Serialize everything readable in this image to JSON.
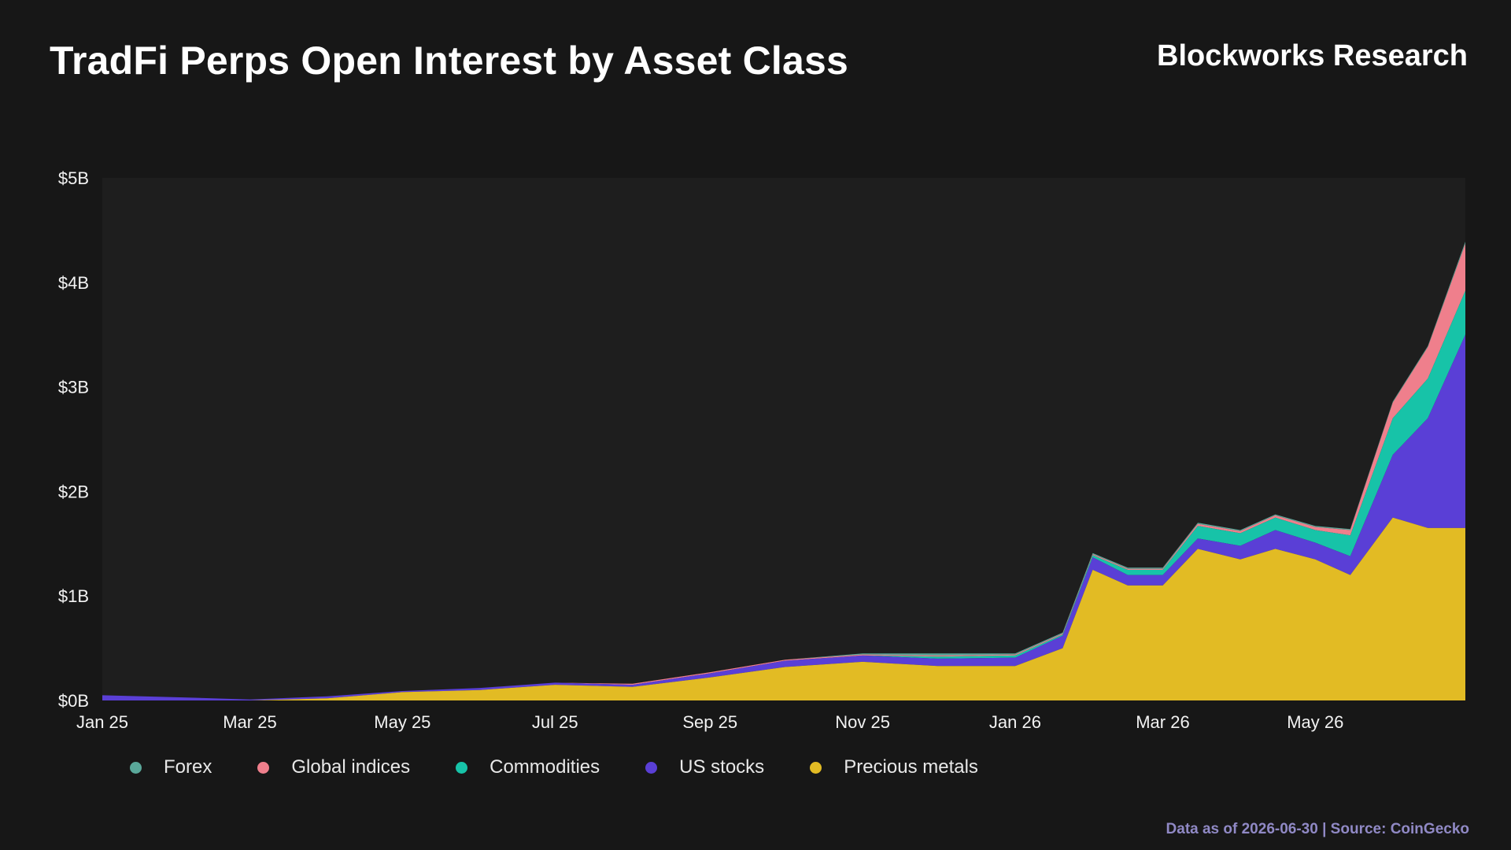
{
  "header": {
    "title": "TradFi Perps Open Interest by Asset Class",
    "brand": "Blockworks Research"
  },
  "footer": {
    "source_note": "Data as of 2026-06-30 | Source: CoinGecko"
  },
  "legend": [
    {
      "label": "Forex",
      "color": "#5aa89a"
    },
    {
      "label": "Global indices",
      "color": "#ef7f8c"
    },
    {
      "label": "Commodities",
      "color": "#17c3a8"
    },
    {
      "label": "US stocks",
      "color": "#5a3fd6"
    },
    {
      "label": "Precious metals",
      "color": "#e2bb24"
    }
  ],
  "chart_data": {
    "type": "area",
    "stacked": true,
    "title": "TradFi Perps Open Interest by Asset Class",
    "xlabel": "",
    "ylabel": "",
    "x_tick_labels": [
      "Jan 25",
      "Mar 25",
      "May 25",
      "Jul 25",
      "Sep 25",
      "Nov 25",
      "Jan 26",
      "Mar 26",
      "May 26"
    ],
    "y_tick_labels": [
      "$0B",
      "$1B",
      "$2B",
      "$3B",
      "$4B",
      "$5B"
    ],
    "ylim": [
      0,
      5
    ],
    "y_unit": "billion USD",
    "xlim": [
      "2025-01-01",
      "2026-06-30"
    ],
    "grid": false,
    "legend_position": "bottom",
    "x": [
      "2025-01-01",
      "2025-02-01",
      "2025-03-01",
      "2025-04-01",
      "2025-05-01",
      "2025-06-01",
      "2025-07-01",
      "2025-08-01",
      "2025-09-01",
      "2025-10-01",
      "2025-11-01",
      "2025-12-01",
      "2026-01-01",
      "2026-01-20",
      "2026-02-01",
      "2026-02-15",
      "2026-03-01",
      "2026-03-15",
      "2026-04-01",
      "2026-04-15",
      "2026-05-01",
      "2026-05-15",
      "2026-06-01",
      "2026-06-15",
      "2026-06-30"
    ],
    "series": [
      {
        "name": "Precious metals",
        "color": "#e2bb24",
        "values": [
          0,
          0,
          0,
          0.02,
          0.08,
          0.1,
          0.15,
          0.13,
          0.22,
          0.32,
          0.37,
          0.33,
          0.33,
          0.5,
          1.25,
          1.1,
          1.1,
          1.45,
          1.35,
          1.45,
          1.35,
          1.2,
          1.75,
          1.65,
          1.65
        ]
      },
      {
        "name": "US stocks",
        "color": "#5a3fd6",
        "values": [
          0.05,
          0.03,
          0.01,
          0.02,
          0.01,
          0.02,
          0.02,
          0.02,
          0.04,
          0.06,
          0.06,
          0.07,
          0.08,
          0.12,
          0.12,
          0.1,
          0.1,
          0.1,
          0.13,
          0.18,
          0.16,
          0.18,
          0.6,
          1.05,
          1.85
        ]
      },
      {
        "name": "Commodities",
        "color": "#17c3a8",
        "values": [
          0,
          0,
          0,
          0,
          0,
          0,
          0,
          0,
          0,
          0,
          0,
          0.02,
          0.02,
          0.01,
          0.02,
          0.05,
          0.05,
          0.12,
          0.12,
          0.12,
          0.12,
          0.2,
          0.35,
          0.38,
          0.42
        ]
      },
      {
        "name": "Global indices",
        "color": "#ef7f8c",
        "values": [
          0,
          0,
          0,
          0,
          0,
          0,
          0,
          0.01,
          0.01,
          0.01,
          0.01,
          0.01,
          0.01,
          0.01,
          0.01,
          0.01,
          0.01,
          0.02,
          0.02,
          0.02,
          0.03,
          0.05,
          0.15,
          0.3,
          0.45
        ]
      },
      {
        "name": "Forex",
        "color": "#5aa89a",
        "values": [
          0,
          0,
          0,
          0,
          0,
          0,
          0,
          0,
          0,
          0,
          0.01,
          0.02,
          0.01,
          0.01,
          0.01,
          0.01,
          0.01,
          0.01,
          0.01,
          0.01,
          0.01,
          0.01,
          0.01,
          0.01,
          0.02
        ]
      }
    ]
  }
}
